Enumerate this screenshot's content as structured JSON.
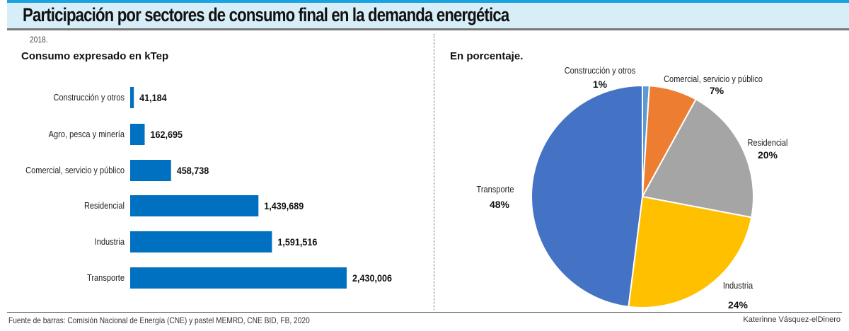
{
  "title": "Participación por sectores de consumo final en la demanda energética",
  "year": "2018.",
  "footer": {
    "source": "Fuente de barras: Comisión Nacional de Energía (CNE) y pastel MEMRD, CNE BID, FB, 2020",
    "credit": "Katerinne Vásquez-elDinero"
  },
  "chart_data": [
    {
      "type": "bar",
      "orientation": "horizontal",
      "title": "Consumo expresado en kTep",
      "categories": [
        "Construcción y otros",
        "Agro, pesca y minería",
        "Comercial, servicio y público",
        "Residencial",
        "Industria",
        "Transporte"
      ],
      "values": [
        41184,
        162695,
        458738,
        1439689,
        1591516,
        2430006
      ],
      "value_labels": [
        "41,184",
        "162,695",
        "458,738",
        "1,439,689",
        "1,591,516",
        "2,430,006"
      ],
      "color": "#0070c0"
    },
    {
      "type": "pie",
      "title": "En porcentaje.",
      "slices": [
        {
          "label": "Construcción y otros",
          "value": 1,
          "text": "1%",
          "color": "#5b9bd5"
        },
        {
          "label": "Comercial, servicio y público",
          "value": 7,
          "text": "7%",
          "color": "#ed7d31"
        },
        {
          "label": "Residencial",
          "value": 20,
          "text": "20%",
          "color": "#a5a5a5"
        },
        {
          "label": "Industria",
          "value": 24,
          "text": "24%",
          "color": "#ffc000"
        },
        {
          "label": "Transporte",
          "value": 48,
          "text": "48%",
          "color": "#4472c4"
        }
      ]
    }
  ]
}
